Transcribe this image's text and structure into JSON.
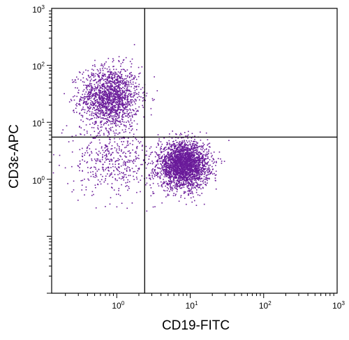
{
  "chart_data": {
    "type": "scatter",
    "xlabel": "CD19-FITC",
    "ylabel": "CD3ε-APC",
    "xscale": "log",
    "yscale": "log",
    "xlim": [
      0.13,
      1000
    ],
    "ylim": [
      0.01,
      1000
    ],
    "grid": false,
    "point_color": "#6a1b9a",
    "x_ticks": [
      {
        "base": "10",
        "exp": "0",
        "value": 1
      },
      {
        "base": "10",
        "exp": "1",
        "value": 10
      },
      {
        "base": "10",
        "exp": "2",
        "value": 100
      },
      {
        "base": "10",
        "exp": "3",
        "value": 1000
      }
    ],
    "y_ticks": [
      {
        "base": "10",
        "exp": "0",
        "value": 1
      },
      {
        "base": "10",
        "exp": "1",
        "value": 10
      },
      {
        "base": "10",
        "exp": "2",
        "value": 100
      },
      {
        "base": "10",
        "exp": "3",
        "value": 1000
      }
    ],
    "quadrant_gates": {
      "x": 2.4,
      "y": 5.5
    },
    "populations": [
      {
        "center_x": 0.8,
        "center_y": 28,
        "spread_x_decades": 0.2,
        "spread_y_decades": 0.27,
        "approx_events": 1600
      },
      {
        "center_x": 8,
        "center_y": 1.8,
        "spread_x_decades": 0.17,
        "spread_y_decades": 0.2,
        "approx_events": 2600
      },
      {
        "center_x": 0.9,
        "center_y": 2.2,
        "spread_x_decades": 0.28,
        "spread_y_decades": 0.3,
        "approx_events": 450
      }
    ]
  }
}
